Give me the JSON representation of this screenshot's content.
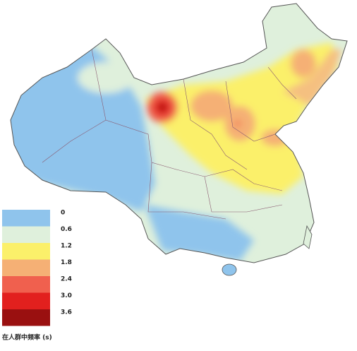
{
  "legend": {
    "title": "在人群中频率 (s)",
    "labels": [
      "0",
      "0.6",
      "1.2",
      "1.8",
      "2.4",
      "3.0",
      "3.6"
    ],
    "colors": [
      "#8fc4ec",
      "#dff0dc",
      "#fbf06a",
      "#f5b075",
      "#f0604e",
      "#e2201e",
      "#9a1010"
    ]
  }
}
